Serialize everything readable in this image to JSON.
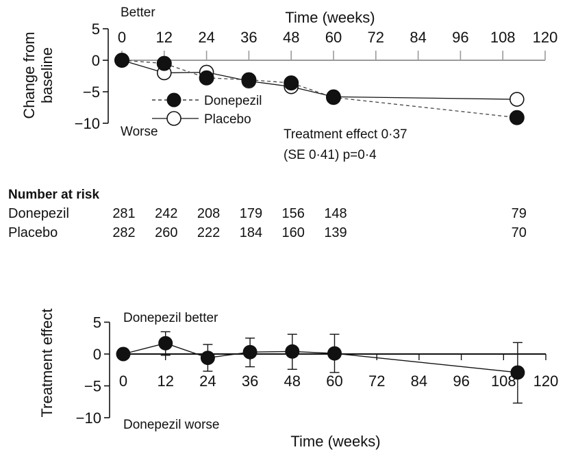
{
  "chart_data": [
    {
      "type": "line",
      "panel": "top",
      "xlabel": "Time (weeks)",
      "ylabel": "Change from baseline",
      "xlim": [
        0,
        120
      ],
      "ylim": [
        -10,
        5
      ],
      "xticks": [
        0,
        12,
        24,
        36,
        48,
        60,
        72,
        84,
        96,
        108,
        120
      ],
      "yticks": [
        5,
        0,
        -5,
        -10
      ],
      "grid": false,
      "legend_placement": "center",
      "annotations": {
        "better": "Better",
        "worse": "Worse",
        "effect_line1": "Treatment effect 0·37",
        "effect_line2": "(SE 0·41) p=0·4"
      },
      "series": [
        {
          "name": "Donepezil",
          "marker": "filled-circle",
          "line_style": "dashed",
          "x": [
            0,
            12,
            24,
            36,
            48,
            60,
            112
          ],
          "y": [
            0,
            -0.5,
            -2.8,
            -3.1,
            -3.6,
            -5.9,
            -9.1
          ]
        },
        {
          "name": "Placebo",
          "marker": "open-circle",
          "line_style": "solid",
          "x": [
            0,
            12,
            24,
            36,
            48,
            60,
            112
          ],
          "y": [
            0,
            -2.0,
            -1.9,
            -3.3,
            -4.2,
            -5.8,
            -6.2
          ]
        }
      ],
      "reference_line": 0
    },
    {
      "type": "line",
      "panel": "bottom",
      "xlabel": "Time (weeks)",
      "ylabel": "Treatment effect",
      "xlim": [
        0,
        120
      ],
      "ylim": [
        -10,
        5
      ],
      "xticks": [
        0,
        12,
        24,
        36,
        48,
        60,
        72,
        84,
        96,
        108,
        120
      ],
      "yticks": [
        5,
        0,
        -5,
        -10
      ],
      "grid": false,
      "annotations": {
        "better": "Donepezil better",
        "worse": "Donepezil worse"
      },
      "series": [
        {
          "marker": "filled-circle",
          "line_style": "solid",
          "x": [
            0,
            12,
            24,
            36,
            48,
            60,
            112
          ],
          "y": [
            0,
            1.7,
            -0.6,
            0.3,
            0.4,
            0.1,
            -2.9
          ],
          "error_low": [
            0,
            -0.2,
            -2.7,
            -2.0,
            -2.4,
            -2.9,
            -7.7
          ],
          "error_high": [
            0,
            3.5,
            1.5,
            2.5,
            3.1,
            3.1,
            1.8
          ]
        }
      ],
      "reference_line": 0
    }
  ],
  "risk_table": {
    "heading": "Number at risk",
    "rows": [
      {
        "label": "Donepezil",
        "counts": [
          "281",
          "242",
          "208",
          "179",
          "156",
          "148",
          "79"
        ]
      },
      {
        "label": "Placebo",
        "counts": [
          "282",
          "260",
          "222",
          "184",
          "160",
          "139",
          "70"
        ]
      }
    ],
    "count_weeks": [
      0,
      12,
      24,
      36,
      48,
      60,
      112
    ]
  },
  "colors": {
    "ink": "#111111",
    "zero_line": "#9a9a9a",
    "dashed": "#444444"
  }
}
